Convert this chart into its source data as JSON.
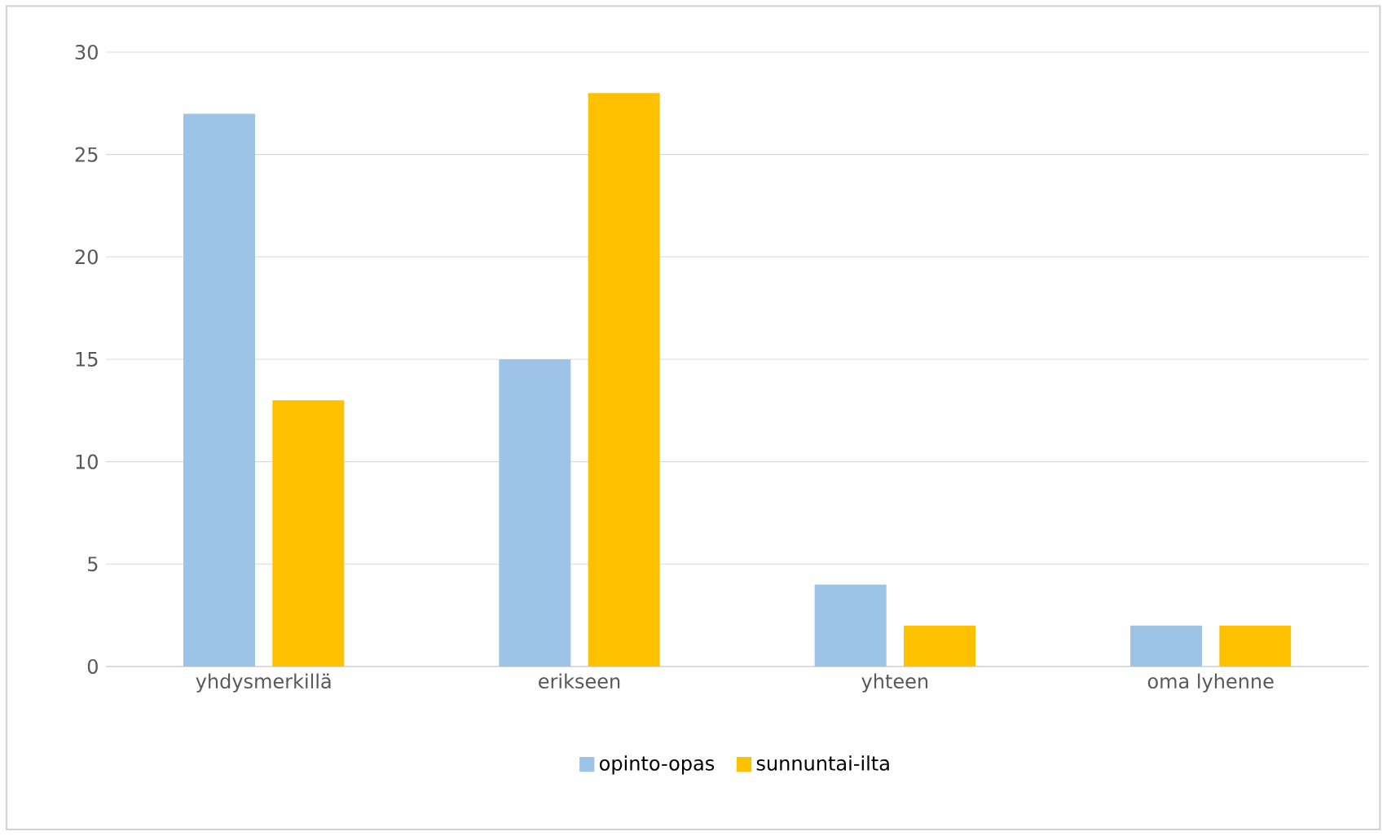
{
  "chart_data": {
    "type": "bar",
    "categories": [
      "yhdysmerkillä",
      "erikseen",
      "yhteen",
      "oma lyhenne"
    ],
    "series": [
      {
        "name": "opinto-opas",
        "color": "#9dc3e6",
        "values": [
          27,
          15,
          4,
          2
        ]
      },
      {
        "name": "sunnuntai-ilta",
        "color": "#ffc000",
        "values": [
          13,
          28,
          2,
          2
        ]
      }
    ],
    "ylim": [
      0,
      30
    ],
    "yticks": [
      0,
      5,
      10,
      15,
      20,
      25,
      30
    ],
    "grid": "y",
    "legend": "bottom"
  }
}
